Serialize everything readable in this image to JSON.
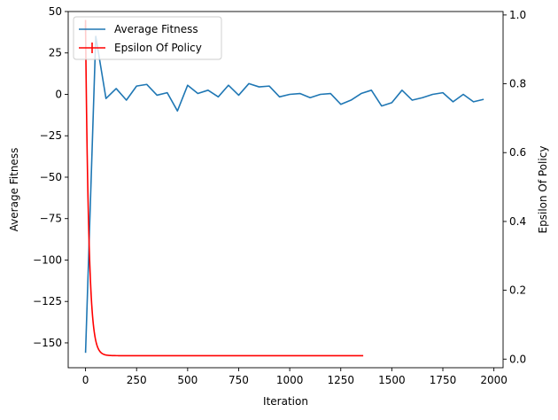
{
  "chart_data": {
    "type": "line",
    "xlabel": "Iteration",
    "ylabel_left": "Average Fitness",
    "ylabel_right": "Epsilon Of Policy",
    "xlim": [
      -85,
      2045
    ],
    "ylim_left": [
      -165,
      50
    ],
    "ylim_right": [
      -0.025,
      1.01
    ],
    "x_ticks": [
      0,
      250,
      500,
      750,
      1000,
      1250,
      1500,
      1750,
      2000
    ],
    "y_ticks_left": [
      50,
      25,
      0,
      -25,
      -50,
      -75,
      -100,
      -125,
      -150
    ],
    "y_ticks_right": [
      0.0,
      0.2,
      0.4,
      0.6,
      0.8,
      1.0
    ],
    "grid": false,
    "legend_position": "top-left",
    "colors": {
      "fitness": "#1f77b4",
      "epsilon": "#ff0000"
    },
    "series": [
      {
        "name": "Average Fitness",
        "axis": "left",
        "x": [
          0,
          50,
          100,
          150,
          200,
          250,
          300,
          350,
          400,
          450,
          500,
          550,
          600,
          650,
          700,
          750,
          800,
          850,
          900,
          950,
          1000,
          1050,
          1100,
          1150,
          1200,
          1250,
          1300,
          1350,
          1400,
          1450,
          1500,
          1550,
          1600,
          1650,
          1700,
          1750,
          1800,
          1850,
          1900,
          1950
        ],
        "y": [
          -156,
          35,
          -2.5,
          3.5,
          -3.5,
          5,
          6,
          -0.5,
          1,
          -10,
          5.5,
          0.5,
          2.5,
          -1.5,
          5.5,
          -0.5,
          6.5,
          4.5,
          5,
          -1.5,
          0,
          0.5,
          -2,
          0,
          0.5,
          -6,
          -3.5,
          0.5,
          2.5,
          -7,
          -5,
          2.5,
          -3.5,
          -2,
          0,
          1,
          -4.5,
          0,
          -4.5,
          -3
        ]
      },
      {
        "name": "Epsilon Of Policy",
        "axis": "right",
        "x_start": 0,
        "x_end": 1360,
        "initial": 0.97,
        "final": 0.01,
        "decay": 0.94
      }
    ]
  }
}
